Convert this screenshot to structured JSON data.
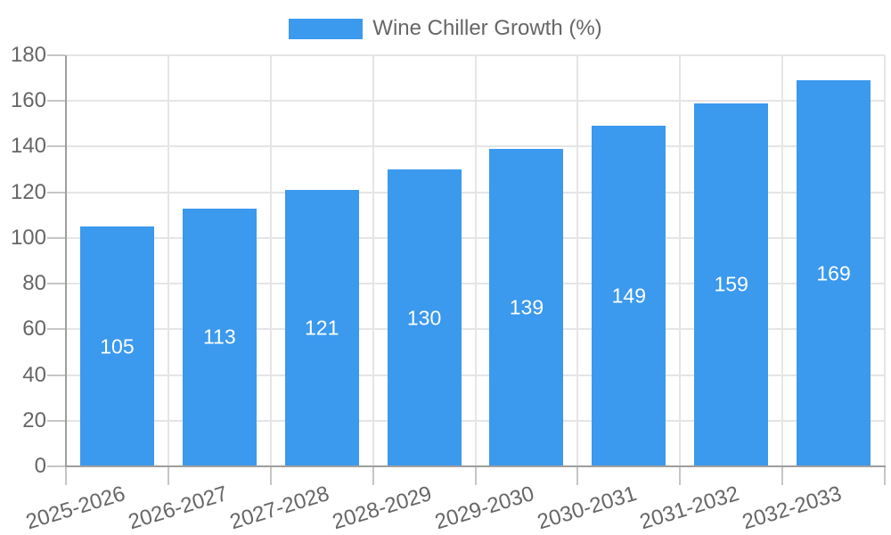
{
  "chart_data": {
    "type": "bar",
    "title": "",
    "categories": [
      "2025-2026",
      "2026-2027",
      "2027-2028",
      "2028-2029",
      "2029-2030",
      "2030-2031",
      "2031-2032",
      "2032-2033"
    ],
    "series": [
      {
        "name": "Wine Chiller Growth (%)",
        "values": [
          105,
          113,
          121,
          130,
          139,
          149,
          159,
          169
        ]
      }
    ],
    "xlabel": "",
    "ylabel": "",
    "ylim": [
      0,
      180
    ],
    "yticks": [
      0,
      20,
      40,
      60,
      80,
      100,
      120,
      140,
      160,
      180
    ],
    "grid": "on",
    "legend_position": "top-center",
    "value_labels": "inside-center"
  },
  "legend": {
    "items": [
      {
        "label": "Wine Chiller Growth (%)"
      }
    ]
  },
  "colors": {
    "bar": "#3B99EE",
    "grid_line": "#e5e5e5",
    "axis_line": "#9e9e9e",
    "tick_mark": "#c6c6c6",
    "tick_label": "#666666",
    "legend_label": "#666666",
    "value_label": "#ffffff",
    "background": "#ffffff"
  }
}
